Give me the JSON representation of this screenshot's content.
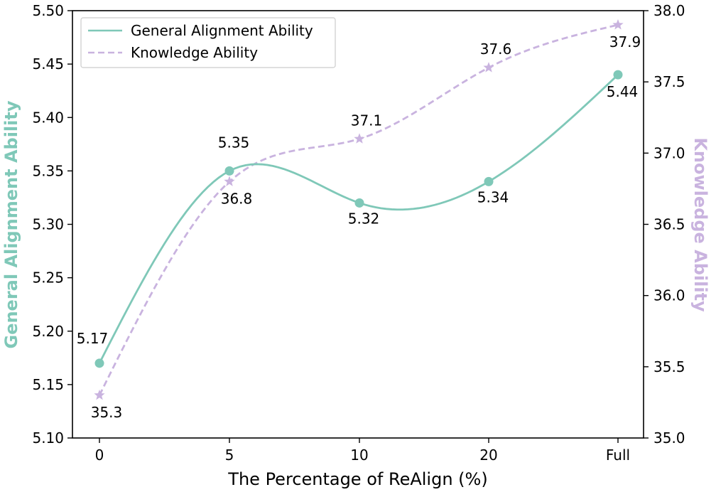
{
  "chart_data": {
    "type": "line",
    "categories": [
      "0",
      "5",
      "10",
      "20",
      "Full"
    ],
    "xlabel": "The Percentage of ReAlign (%)",
    "ylabel_left": "General Alignment Ability",
    "ylabel_right": "Knowledge Ability",
    "ylim_left": [
      5.1,
      5.5
    ],
    "ylim_right": [
      35.0,
      38.0
    ],
    "yticks_left": [
      "5.10",
      "5.15",
      "5.20",
      "5.25",
      "5.30",
      "5.35",
      "5.40",
      "5.45",
      "5.50"
    ],
    "yticks_right": [
      "35.0",
      "35.5",
      "36.0",
      "36.5",
      "37.0",
      "37.5",
      "38.0"
    ],
    "legend_position": "top-left",
    "grid": false,
    "series": [
      {
        "name": "General Alignment Ability",
        "axis": "left",
        "style": "solid",
        "marker": "circle",
        "color": "#7fc8b8",
        "values": [
          5.17,
          5.35,
          5.32,
          5.34,
          5.44
        ],
        "labels": [
          "5.17",
          "5.35",
          "5.32",
          "5.34",
          "5.44"
        ]
      },
      {
        "name": "Knowledge Ability",
        "axis": "right",
        "style": "dashed",
        "marker": "star",
        "color": "#c9b3df",
        "values": [
          35.3,
          36.8,
          37.1,
          37.6,
          37.9
        ],
        "labels": [
          "35.3",
          "36.8",
          "37.1",
          "37.6",
          "37.9"
        ]
      }
    ]
  }
}
